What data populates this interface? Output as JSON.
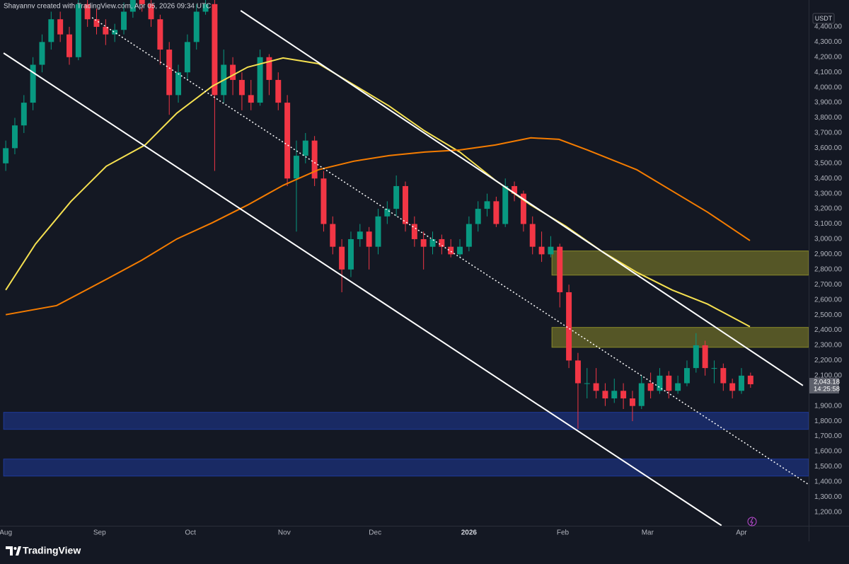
{
  "chart_data": {
    "type": "candlestick",
    "header": "Shayannv created with TradingView.com, Apr 05, 2026 09:34 UTC",
    "currency": "USDT",
    "brand": "TradingView",
    "xlim": [
      -1.9,
      265.2
    ],
    "xticks": [
      {
        "value": 0,
        "label": "Aug"
      },
      {
        "value": 31,
        "label": "Sep"
      },
      {
        "value": 61,
        "label": "Oct"
      },
      {
        "value": 92,
        "label": "Nov"
      },
      {
        "value": 122,
        "label": "Dec"
      },
      {
        "value": 153,
        "label": "2026"
      },
      {
        "value": 184,
        "label": "Feb"
      },
      {
        "value": 212,
        "label": "Mar"
      },
      {
        "value": 243,
        "label": "Apr"
      }
    ],
    "ylim": [
      1110,
      4577
    ],
    "yticks": [
      {
        "value": 1200,
        "label": "1,200.00"
      },
      {
        "value": 1300,
        "label": "1,300.00"
      },
      {
        "value": 1400,
        "label": "1,400.00"
      },
      {
        "value": 1500,
        "label": "1,500.00"
      },
      {
        "value": 1600,
        "label": "1,600.00"
      },
      {
        "value": 1700,
        "label": "1,700.00"
      },
      {
        "value": 1800,
        "label": "1,800.00"
      },
      {
        "value": 1900,
        "label": "1,900.00"
      },
      {
        "value": 2100,
        "label": "2,100.00"
      },
      {
        "value": 2200,
        "label": "2,200.00"
      },
      {
        "value": 2300,
        "label": "2,300.00"
      },
      {
        "value": 2400,
        "label": "2,400.00"
      },
      {
        "value": 2500,
        "label": "2,500.00"
      },
      {
        "value": 2600,
        "label": "2,600.00"
      },
      {
        "value": 2700,
        "label": "2,700.00"
      },
      {
        "value": 2800,
        "label": "2,800.00"
      },
      {
        "value": 2900,
        "label": "2,900.00"
      },
      {
        "value": 3000,
        "label": "3,000.00"
      },
      {
        "value": 3100,
        "label": "3,100.00"
      },
      {
        "value": 3200,
        "label": "3,200.00"
      },
      {
        "value": 3300,
        "label": "3,300.00"
      },
      {
        "value": 3400,
        "label": "3,400.00"
      },
      {
        "value": 3500,
        "label": "3,500.00"
      },
      {
        "value": 3600,
        "label": "3,600.00"
      },
      {
        "value": 3700,
        "label": "3,700.00"
      },
      {
        "value": 3800,
        "label": "3,800.00"
      },
      {
        "value": 3900,
        "label": "3,900.00"
      },
      {
        "value": 4000,
        "label": "4,000.00"
      },
      {
        "value": 4100,
        "label": "4,100.00"
      },
      {
        "value": 4200,
        "label": "4,200.00"
      },
      {
        "value": 4300,
        "label": "4,300.00"
      },
      {
        "value": 4400,
        "label": "4,400.00"
      }
    ],
    "last_price": {
      "value": 2043.18,
      "label": "2,043.18"
    },
    "countdown": "14:25:58",
    "series": [
      {
        "up_color": "#089981",
        "down_color": "#f23645",
        "x": [
          0,
          3,
          6,
          9,
          12,
          15,
          18,
          21,
          24,
          27,
          30,
          33,
          36,
          39,
          42,
          45,
          48,
          51,
          54,
          57,
          60,
          63,
          66,
          69,
          72,
          75,
          78,
          81,
          84,
          87,
          90,
          93,
          96,
          99,
          102,
          105,
          108,
          111,
          114,
          117,
          120,
          123,
          126,
          129,
          132,
          135,
          138,
          141,
          144,
          147,
          150,
          153,
          156,
          159,
          162,
          165,
          168,
          171,
          174,
          177,
          180,
          183,
          186,
          189,
          192,
          195,
          198,
          201,
          204,
          207,
          210,
          213,
          216,
          219,
          222,
          225,
          228,
          231,
          234,
          237,
          240,
          243,
          246
        ],
        "open": [
          3500,
          3600,
          3750,
          3900,
          4150,
          4300,
          4450,
          4350,
          4200,
          4550,
          4450,
          4400,
          4350,
          4380,
          4500,
          4600,
          4550,
          4450,
          4250,
          3950,
          4100,
          4300,
          4500,
          4550,
          3950,
          4150,
          4050,
          3950,
          3900,
          4200,
          4050,
          3900,
          3400,
          3550,
          3650,
          3400,
          3100,
          2950,
          2800,
          3000,
          3050,
          2950,
          3150,
          3200,
          3350,
          3100,
          3000,
          2950,
          3000,
          2950,
          2900,
          2950,
          3100,
          3200,
          3250,
          3100,
          3350,
          3300,
          3100,
          2950,
          2900,
          2950,
          2650,
          2200,
          2050,
          2050,
          2000,
          1950,
          2000,
          1950,
          1900,
          2050,
          2000,
          2100,
          2000,
          2050,
          2150,
          2300,
          2150,
          2150,
          2050,
          2000,
          2100
        ],
        "high": [
          3650,
          3800,
          3950,
          4200,
          4350,
          4500,
          4500,
          4400,
          4600,
          4600,
          4520,
          4450,
          4420,
          4560,
          4650,
          4650,
          4600,
          4480,
          4300,
          4150,
          4350,
          4550,
          4620,
          4580,
          4250,
          4200,
          4100,
          4050,
          4250,
          4220,
          4100,
          3950,
          3650,
          3700,
          3680,
          3450,
          3150,
          3000,
          3050,
          3100,
          3080,
          3200,
          3250,
          3420,
          3380,
          3150,
          3050,
          3050,
          3030,
          3000,
          3000,
          3150,
          3250,
          3300,
          3280,
          3400,
          3380,
          3320,
          3150,
          3050,
          3020,
          2970,
          2700,
          2250,
          2150,
          2150,
          2050,
          2080,
          2050,
          2000,
          2100,
          2120,
          2150,
          2130,
          2100,
          2200,
          2380,
          2330,
          2200,
          2180,
          2080,
          2150,
          2120
        ],
        "low": [
          3450,
          3560,
          3700,
          3850,
          4100,
          4250,
          4300,
          4150,
          4180,
          4400,
          4350,
          4280,
          4300,
          4350,
          4460,
          4500,
          4400,
          4150,
          3820,
          3900,
          4050,
          4250,
          4480,
          3450,
          3900,
          3950,
          3850,
          3850,
          3880,
          3950,
          3850,
          3350,
          3050,
          3500,
          3350,
          3050,
          2900,
          2650,
          2750,
          2950,
          2800,
          2900,
          3100,
          3150,
          3050,
          2950,
          2800,
          2900,
          2900,
          2880,
          2880,
          2920,
          3050,
          3150,
          3080,
          3080,
          3250,
          3050,
          2900,
          2850,
          2880,
          2550,
          2150,
          1750,
          1950,
          1950,
          1900,
          1920,
          1880,
          1800,
          1880,
          1950,
          1980,
          1950,
          1980,
          2030,
          2120,
          2100,
          2050,
          2000,
          1950,
          1980,
          2020
        ],
        "close": [
          3600,
          3750,
          3900,
          4150,
          4300,
          4450,
          4350,
          4200,
          4550,
          4450,
          4400,
          4350,
          4380,
          4500,
          4600,
          4550,
          4450,
          4250,
          3950,
          4100,
          4300,
          4500,
          4550,
          3950,
          4150,
          4050,
          3950,
          3900,
          4200,
          4050,
          3900,
          3400,
          3550,
          3650,
          3400,
          3100,
          2950,
          2800,
          3000,
          3050,
          2950,
          3150,
          3200,
          3350,
          3100,
          3000,
          2950,
          3000,
          2950,
          2900,
          2950,
          3100,
          3200,
          3250,
          3100,
          3350,
          3300,
          3100,
          2950,
          2900,
          2950,
          2650,
          2200,
          2050,
          2050,
          2000,
          1950,
          2000,
          1950,
          1900,
          2050,
          2000,
          2100,
          2000,
          2050,
          2150,
          2300,
          2150,
          2150,
          2050,
          2000,
          2100,
          2043.18
        ]
      }
    ],
    "moving_averages": [
      {
        "color": "#f5e050",
        "x": [
          0,
          9.8,
          21.5,
          33.2,
          46,
          56.5,
          68.2,
          79.9,
          91.6,
          103.3,
          114.95,
          126.6,
          138.3,
          150,
          161.7,
          173.4,
          185,
          196.7,
          208.4,
          220.1,
          231.8,
          245.8
        ],
        "values": [
          2665,
          2968,
          3248,
          3481,
          3621,
          3831,
          4008,
          4134,
          4195,
          4157,
          4018,
          3878,
          3714,
          3574,
          3388,
          3225,
          3085,
          2922,
          2782,
          2665,
          2572,
          2423
        ]
      },
      {
        "color": "#f57c00",
        "x": [
          0,
          16.8,
          33.2,
          44.9,
          56.5,
          68.2,
          79.9,
          91.6,
          103.3,
          114.95,
          126.6,
          138.3,
          150,
          161.7,
          173.4,
          182.7,
          192.1,
          208.4,
          220.1,
          231.8,
          245.8
        ],
        "values": [
          2502,
          2562,
          2735,
          2861,
          3001,
          3108,
          3225,
          3355,
          3458,
          3514,
          3551,
          3574,
          3588,
          3621,
          3668,
          3658,
          3588,
          3458,
          3318,
          3178,
          2991
        ]
      }
    ],
    "trendlines": [
      {
        "color": "#ffffff",
        "dashed": false,
        "x": [
          77.6,
          263.3
        ],
        "values": [
          4507,
          2035
        ]
      },
      {
        "color": "#ffffff",
        "dashed": false,
        "x": [
          -0.7,
          236.4
        ],
        "values": [
          4227,
          1112
        ]
      },
      {
        "color": "#ffffff",
        "dashed": true,
        "x": [
          28.5,
          265.2
        ],
        "values": [
          4461,
          1382
        ]
      }
    ],
    "zones": [
      {
        "color": "#8a8a2a",
        "x": [
          180.4,
          265.2
        ],
        "y": [
          2763,
          2922
        ]
      },
      {
        "color": "#8a8a2a",
        "x": [
          180.4,
          265.2
        ],
        "y": [
          2287,
          2418
        ]
      },
      {
        "color": "#1e3a9a",
        "x": [
          -0.7,
          265.2
        ],
        "y": [
          1746,
          1858
        ]
      },
      {
        "color": "#1e3a9a",
        "x": [
          -0.7,
          265.2
        ],
        "y": [
          1438,
          1550
        ]
      }
    ]
  }
}
